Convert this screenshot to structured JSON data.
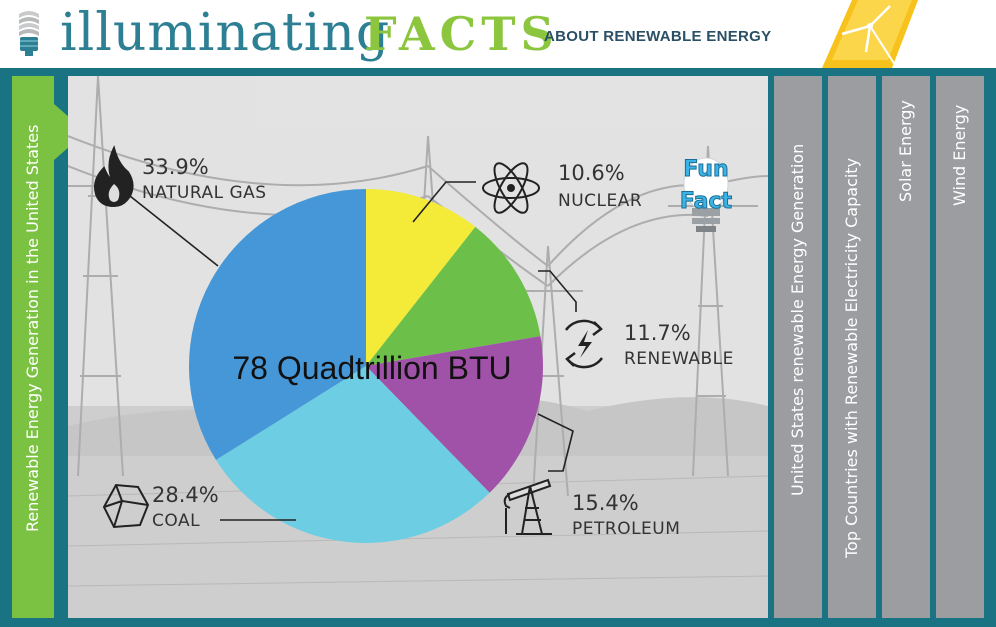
{
  "header": {
    "brand_part1": "illuminating",
    "brand_part2": "FACTS",
    "tagline": "ABOUT RENEWABLE ENERGY"
  },
  "tabs": [
    {
      "label": "Renewable Energy Generation in the United States",
      "active": true
    },
    {
      "label": "United States renewable Energy Generation",
      "active": false
    },
    {
      "label": "Top Countries with Renewable Electricity Capacity",
      "active": false
    },
    {
      "label": "Solar Energy",
      "active": false
    },
    {
      "label": "Wind Energy",
      "active": false
    }
  ],
  "fun_fact": {
    "line1": "Fun",
    "line2": "Fact"
  },
  "colors": {
    "frame": "#1a7383",
    "active_tab": "#7cc242",
    "inactive_tab": "#9c9da0",
    "brand_blue": "#2d7f93",
    "brand_green": "#8cc63e"
  },
  "chart_data": {
    "type": "pie",
    "center_label": "78 Quadtrillion BTU",
    "slices": [
      {
        "name": "NUCLEAR",
        "percent_label": "10.6%",
        "value": 10.6,
        "color": "#f4ea38",
        "icon": "atom-icon"
      },
      {
        "name": "RENEWABLE",
        "percent_label": "11.7%",
        "value": 11.7,
        "color": "#6cc04a",
        "icon": "renewable-bolt-icon"
      },
      {
        "name": "PETROLEUM",
        "percent_label": "15.4%",
        "value": 15.4,
        "color": "#a051a8",
        "icon": "oil-pump-icon"
      },
      {
        "name": "COAL",
        "percent_label": "28.4%",
        "value": 28.4,
        "color": "#6ccde3",
        "icon": "coal-icon"
      },
      {
        "name": "NATURAL GAS",
        "percent_label": "33.9%",
        "value": 33.9,
        "color": "#4597d7",
        "icon": "flame-icon"
      }
    ]
  }
}
